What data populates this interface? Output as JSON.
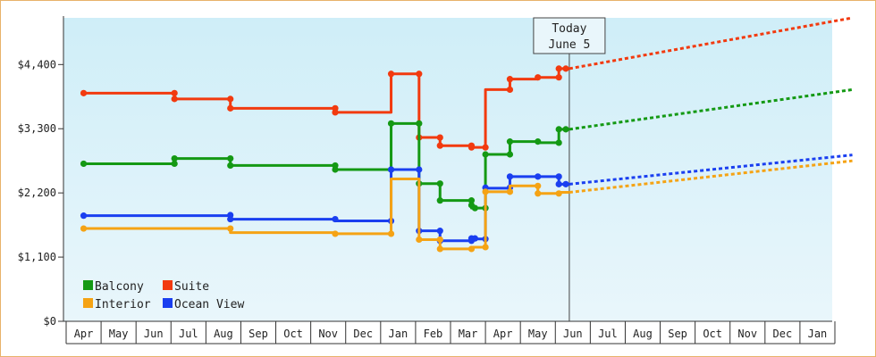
{
  "chart_data": {
    "type": "line",
    "title": "",
    "xlabel": "",
    "ylabel": "",
    "x_categories": [
      "Apr",
      "May",
      "Jun",
      "Jul",
      "Aug",
      "Sep",
      "Oct",
      "Nov",
      "Dec",
      "Jan",
      "Feb",
      "Mar",
      "Apr",
      "May",
      "Jun",
      "Jul",
      "Aug",
      "Sep",
      "Oct",
      "Nov",
      "Dec",
      "Jan"
    ],
    "ylim": [
      0,
      5200
    ],
    "y_ticks": [
      0,
      1100,
      2200,
      3300,
      4400
    ],
    "y_tick_labels": [
      "$0",
      "$1,100",
      "$2,200",
      "$3,300",
      "$4,400"
    ],
    "grid": false,
    "legend_position": "bottom-left",
    "today_marker": {
      "line1": "Today",
      "line2": "June 5",
      "x": 13.9
    },
    "series": [
      {
        "name": "Suite",
        "color": "#f23a0f",
        "points": [
          [
            0,
            3910
          ],
          [
            2.6,
            3910
          ],
          [
            2.6,
            3810
          ],
          [
            4.2,
            3810
          ],
          [
            4.2,
            3650
          ],
          [
            7.2,
            3650
          ],
          [
            7.2,
            3580
          ],
          [
            8.8,
            3580
          ],
          [
            8.8,
            4240
          ],
          [
            9.6,
            4240
          ],
          [
            9.6,
            3150
          ],
          [
            10.2,
            3150
          ],
          [
            10.2,
            3010
          ],
          [
            11.1,
            3010
          ],
          [
            11.1,
            2980
          ],
          [
            11.5,
            2980
          ],
          [
            11.5,
            3970
          ],
          [
            12.2,
            3970
          ],
          [
            12.2,
            4150
          ],
          [
            13.0,
            4150
          ],
          [
            13.0,
            4180
          ],
          [
            13.6,
            4180
          ],
          [
            13.6,
            4330
          ],
          [
            13.9,
            4330
          ]
        ],
        "markers": [
          [
            0,
            3910
          ],
          [
            2.6,
            3910
          ],
          [
            2.6,
            3810
          ],
          [
            4.2,
            3810
          ],
          [
            4.2,
            3650
          ],
          [
            7.2,
            3650
          ],
          [
            7.2,
            3580
          ],
          [
            8.8,
            4240
          ],
          [
            9.6,
            4240
          ],
          [
            9.6,
            3150
          ],
          [
            10.2,
            3150
          ],
          [
            10.2,
            3010
          ],
          [
            11.1,
            3010
          ],
          [
            11.1,
            2980
          ],
          [
            11.5,
            2980
          ],
          [
            12.2,
            3970
          ],
          [
            12.2,
            4150
          ],
          [
            13.0,
            4180
          ],
          [
            13.6,
            4180
          ],
          [
            13.6,
            4330
          ],
          [
            13.8,
            4330
          ]
        ],
        "forecast": [
          [
            13.9,
            4330
          ],
          [
            22,
            5200
          ]
        ]
      },
      {
        "name": "Balcony",
        "color": "#149914",
        "points": [
          [
            0,
            2700
          ],
          [
            2.6,
            2700
          ],
          [
            2.6,
            2790
          ],
          [
            4.2,
            2790
          ],
          [
            4.2,
            2670
          ],
          [
            7.2,
            2670
          ],
          [
            7.2,
            2600
          ],
          [
            8.8,
            2600
          ],
          [
            8.8,
            3390
          ],
          [
            9.6,
            3390
          ],
          [
            9.6,
            2360
          ],
          [
            10.2,
            2360
          ],
          [
            10.2,
            2070
          ],
          [
            11.1,
            2070
          ],
          [
            11.1,
            1940
          ],
          [
            11.5,
            1940
          ],
          [
            11.5,
            2860
          ],
          [
            12.2,
            2860
          ],
          [
            12.2,
            3080
          ],
          [
            13.0,
            3080
          ],
          [
            13.0,
            3060
          ],
          [
            13.6,
            3060
          ],
          [
            13.6,
            3290
          ],
          [
            13.9,
            3290
          ]
        ],
        "markers": [
          [
            0,
            2700
          ],
          [
            2.6,
            2700
          ],
          [
            2.6,
            2790
          ],
          [
            4.2,
            2790
          ],
          [
            4.2,
            2670
          ],
          [
            7.2,
            2670
          ],
          [
            7.2,
            2600
          ],
          [
            8.8,
            2600
          ],
          [
            8.8,
            3390
          ],
          [
            9.6,
            3390
          ],
          [
            9.6,
            2360
          ],
          [
            10.2,
            2360
          ],
          [
            10.2,
            2070
          ],
          [
            11.1,
            2070
          ],
          [
            11.1,
            1990
          ],
          [
            11.2,
            1940
          ],
          [
            11.5,
            1940
          ],
          [
            11.5,
            2860
          ],
          [
            12.2,
            2860
          ],
          [
            12.2,
            3080
          ],
          [
            13.0,
            3080
          ],
          [
            13.6,
            3060
          ],
          [
            13.6,
            3290
          ],
          [
            13.8,
            3290
          ]
        ],
        "forecast": [
          [
            13.9,
            3290
          ],
          [
            22,
            3970
          ]
        ]
      },
      {
        "name": "Ocean View",
        "color": "#1a3ff0",
        "points": [
          [
            0,
            1810
          ],
          [
            4.2,
            1810
          ],
          [
            4.2,
            1750
          ],
          [
            7.2,
            1750
          ],
          [
            7.2,
            1720
          ],
          [
            8.8,
            1720
          ],
          [
            8.8,
            2600
          ],
          [
            9.6,
            2600
          ],
          [
            9.6,
            1550
          ],
          [
            10.2,
            1550
          ],
          [
            10.2,
            1380
          ],
          [
            11.1,
            1380
          ],
          [
            11.1,
            1410
          ],
          [
            11.5,
            1410
          ],
          [
            11.5,
            2280
          ],
          [
            12.2,
            2280
          ],
          [
            12.2,
            2480
          ],
          [
            13.6,
            2480
          ],
          [
            13.6,
            2350
          ],
          [
            13.9,
            2350
          ]
        ],
        "markers": [
          [
            0,
            1810
          ],
          [
            4.2,
            1820
          ],
          [
            4.2,
            1750
          ],
          [
            7.2,
            1750
          ],
          [
            8.8,
            1720
          ],
          [
            8.8,
            2600
          ],
          [
            9.6,
            2600
          ],
          [
            9.6,
            1550
          ],
          [
            10.2,
            1550
          ],
          [
            10.2,
            1380
          ],
          [
            11.1,
            1380
          ],
          [
            11.1,
            1420
          ],
          [
            11.2,
            1420
          ],
          [
            11.5,
            1410
          ],
          [
            11.5,
            2290
          ],
          [
            12.2,
            2290
          ],
          [
            12.2,
            2480
          ],
          [
            13.0,
            2480
          ],
          [
            13.6,
            2480
          ],
          [
            13.6,
            2350
          ],
          [
            13.8,
            2350
          ]
        ],
        "forecast": [
          [
            13.9,
            2350
          ],
          [
            22,
            2850
          ]
        ]
      },
      {
        "name": "Interior",
        "color": "#f5a314",
        "points": [
          [
            0,
            1590
          ],
          [
            4.2,
            1590
          ],
          [
            4.2,
            1520
          ],
          [
            7.2,
            1520
          ],
          [
            7.2,
            1500
          ],
          [
            8.8,
            1500
          ],
          [
            8.8,
            2440
          ],
          [
            9.6,
            2440
          ],
          [
            9.6,
            1400
          ],
          [
            10.2,
            1400
          ],
          [
            10.2,
            1240
          ],
          [
            11.1,
            1240
          ],
          [
            11.1,
            1270
          ],
          [
            11.5,
            1270
          ],
          [
            11.5,
            2220
          ],
          [
            12.2,
            2220
          ],
          [
            12.2,
            2320
          ],
          [
            13.0,
            2320
          ],
          [
            13.0,
            2190
          ],
          [
            13.6,
            2190
          ],
          [
            13.6,
            2210
          ],
          [
            13.9,
            2210
          ]
        ],
        "markers": [
          [
            0,
            1590
          ],
          [
            4.2,
            1590
          ],
          [
            7.2,
            1500
          ],
          [
            8.8,
            1500
          ],
          [
            9.6,
            1400
          ],
          [
            10.2,
            1400
          ],
          [
            10.2,
            1240
          ],
          [
            11.1,
            1240
          ],
          [
            11.5,
            1270
          ],
          [
            11.5,
            2220
          ],
          [
            12.2,
            2220
          ],
          [
            13.0,
            2320
          ],
          [
            13.0,
            2190
          ],
          [
            13.6,
            2190
          ]
        ],
        "forecast": [
          [
            13.9,
            2210
          ],
          [
            22,
            2750
          ]
        ]
      }
    ],
    "legend": [
      {
        "label": "Balcony",
        "color": "#149914"
      },
      {
        "label": "Suite",
        "color": "#f23a0f"
      },
      {
        "label": "Interior",
        "color": "#f5a314"
      },
      {
        "label": "Ocean View",
        "color": "#1a3ff0"
      }
    ]
  }
}
